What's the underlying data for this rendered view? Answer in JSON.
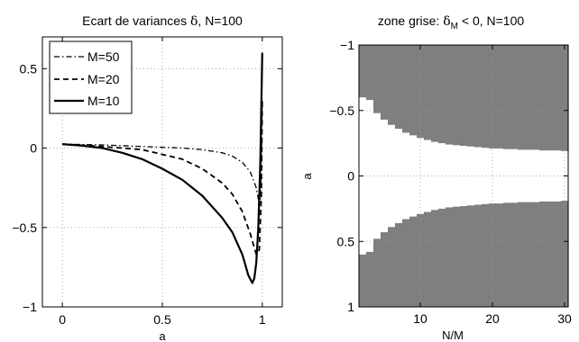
{
  "chart_data": [
    {
      "type": "line",
      "title_main": "Ecart de variances ",
      "title_symbol": "δ",
      "title_tail": ", N=100",
      "xlabel": "a",
      "ylabel": "",
      "xlim": [
        -0.1,
        1.1
      ],
      "ylim": [
        -1,
        0.7
      ],
      "xticks": [
        0,
        0.5,
        1
      ],
      "xtick_labels": [
        "0",
        "0.5",
        "1"
      ],
      "yticks": [
        -1,
        -0.5,
        0,
        0.5
      ],
      "ytick_labels": [
        "−1",
        "−0.5",
        "0",
        "0.5"
      ],
      "grid": true,
      "legend_position": "top-left",
      "series": [
        {
          "name": "M=50",
          "style": "dashdot",
          "points": [
            [
              0,
              0.025
            ],
            [
              0.2,
              0.02
            ],
            [
              0.4,
              0.01
            ],
            [
              0.6,
              0
            ],
            [
              0.7,
              -0.01
            ],
            [
              0.8,
              -0.03
            ],
            [
              0.85,
              -0.05
            ],
            [
              0.9,
              -0.09
            ],
            [
              0.94,
              -0.15
            ],
            [
              0.97,
              -0.25
            ],
            [
              0.98,
              -0.32
            ],
            [
              0.99,
              -0.33
            ],
            [
              0.995,
              -0.1
            ],
            [
              1,
              0.3
            ]
          ]
        },
        {
          "name": "M=20",
          "style": "dashed",
          "points": [
            [
              0,
              0.025
            ],
            [
              0.2,
              0.01
            ],
            [
              0.4,
              -0.01
            ],
            [
              0.5,
              -0.04
            ],
            [
              0.6,
              -0.07
            ],
            [
              0.7,
              -0.13
            ],
            [
              0.8,
              -0.22
            ],
            [
              0.85,
              -0.29
            ],
            [
              0.9,
              -0.4
            ],
            [
              0.94,
              -0.54
            ],
            [
              0.97,
              -0.67
            ],
            [
              0.985,
              -0.64
            ],
            [
              0.995,
              -0.3
            ],
            [
              1,
              0.3
            ]
          ]
        },
        {
          "name": "M=10",
          "style": "solid",
          "points": [
            [
              0,
              0.025
            ],
            [
              0.1,
              0.015
            ],
            [
              0.2,
              0
            ],
            [
              0.3,
              -0.03
            ],
            [
              0.4,
              -0.07
            ],
            [
              0.5,
              -0.13
            ],
            [
              0.6,
              -0.2
            ],
            [
              0.7,
              -0.3
            ],
            [
              0.8,
              -0.44
            ],
            [
              0.85,
              -0.53
            ],
            [
              0.9,
              -0.67
            ],
            [
              0.93,
              -0.8
            ],
            [
              0.95,
              -0.85
            ],
            [
              0.96,
              -0.82
            ],
            [
              0.97,
              -0.72
            ],
            [
              0.98,
              -0.5
            ],
            [
              0.99,
              -0.1
            ],
            [
              1,
              0.6
            ]
          ]
        }
      ]
    },
    {
      "type": "heatmap",
      "title_main": "zone grise: ",
      "title_symbol": "δ",
      "title_sub": "M",
      "title_tail": " < 0, N=100",
      "xlabel": "N/M",
      "ylabel": "a",
      "xlim": [
        1.5,
        30.5
      ],
      "ylim": [
        -1,
        1
      ],
      "y_inverted": true,
      "xticks": [
        10,
        20,
        30
      ],
      "xtick_labels": [
        "10",
        "20",
        "30"
      ],
      "yticks": [
        -1,
        -0.5,
        0,
        0.5,
        1
      ],
      "ytick_labels": [
        "−1",
        "−0.5",
        "0",
        "0.5",
        "1"
      ],
      "grid": true,
      "shade_color": "#7f7f7f",
      "x_values": [
        2,
        3,
        4,
        5,
        6,
        7,
        8,
        9,
        10,
        11,
        12,
        13,
        14,
        15,
        16,
        17,
        18,
        19,
        20,
        21,
        22,
        23,
        24,
        25,
        26,
        27,
        28,
        29,
        30
      ],
      "upper_region_boundary": [
        -0.6,
        -0.58,
        -0.48,
        -0.43,
        -0.39,
        -0.36,
        -0.33,
        -0.31,
        -0.29,
        -0.275,
        -0.26,
        -0.25,
        -0.24,
        -0.235,
        -0.23,
        -0.225,
        -0.22,
        -0.215,
        -0.21,
        -0.21,
        -0.205,
        -0.205,
        -0.2,
        -0.2,
        -0.2,
        -0.195,
        -0.195,
        -0.195,
        -0.19
      ],
      "lower_region_boundary": [
        0.6,
        0.58,
        0.48,
        0.43,
        0.39,
        0.36,
        0.33,
        0.31,
        0.29,
        0.275,
        0.26,
        0.25,
        0.24,
        0.235,
        0.23,
        0.225,
        0.22,
        0.215,
        0.21,
        0.21,
        0.205,
        0.205,
        0.2,
        0.2,
        0.2,
        0.195,
        0.195,
        0.195,
        0.19
      ]
    }
  ]
}
